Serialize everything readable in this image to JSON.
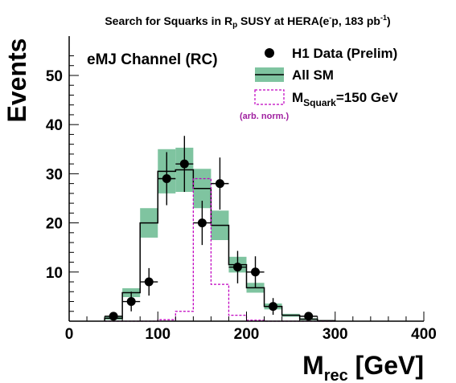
{
  "chart_data": {
    "type": "histogram",
    "title": "Search for Squarks in R_p SUSY at HERA(e⁻p, 183 pb⁻¹)",
    "title_parts": {
      "pre": "Search for Squarks in ",
      "rp_letter": "R",
      "rp_sub": "p",
      "mid": " SUSY at HERA(e",
      "e_sup": "-",
      "post1": "p, 183 pb",
      "pb_sup": "-1",
      "post2": ")"
    },
    "annotation": "eMJ Channel (RC)",
    "xlabel": "M_rec [GeV]",
    "xlabel_main": "M",
    "xlabel_sub": "rec",
    "xlabel_unit": " [GeV]",
    "ylabel": "Events",
    "xlim": [
      0,
      400
    ],
    "ylim": [
      0,
      58
    ],
    "x_ticks": [
      0,
      100,
      200,
      300,
      400
    ],
    "y_ticks": [
      10,
      20,
      30,
      40,
      50
    ],
    "grid": false,
    "legend_position": "top-right",
    "legend": {
      "data_label": "H1 Data (Prelim)",
      "sm_label": "All SM",
      "signal_main": "M",
      "signal_sub": "Squark",
      "signal_value": "=150 GeV",
      "signal_note": "(arb. norm.)"
    },
    "bin_edges": [
      40,
      60,
      80,
      100,
      120,
      140,
      160,
      180,
      200,
      220,
      240,
      260,
      280,
      300
    ],
    "sm_expectation": [
      0.6,
      5.8,
      20.0,
      30.5,
      30.8,
      27.0,
      19.5,
      11.5,
      6.8,
      3.0,
      1.2,
      0.4,
      0.1
    ],
    "sm_error": [
      0.3,
      0.9,
      3.0,
      4.5,
      4.5,
      4.0,
      3.0,
      1.6,
      1.0,
      0.6,
      0.3,
      0.2,
      0.1
    ],
    "signal": [
      0.0,
      0.0,
      0.0,
      0.3,
      2.0,
      29.0,
      7.5,
      1.2,
      0.2,
      0.0,
      0.0,
      0.0,
      0.0
    ],
    "data_points": [
      {
        "x": 50,
        "y": 1,
        "err": 0.8
      },
      {
        "x": 70,
        "y": 4,
        "err": 2.0
      },
      {
        "x": 90,
        "y": 8,
        "err": 2.8
      },
      {
        "x": 110,
        "y": 29,
        "err": 5.4
      },
      {
        "x": 130,
        "y": 32,
        "err": 5.7
      },
      {
        "x": 150,
        "y": 20,
        "err": 4.5
      },
      {
        "x": 170,
        "y": 28,
        "err": 5.3
      },
      {
        "x": 190,
        "y": 11,
        "err": 3.3
      },
      {
        "x": 210,
        "y": 10,
        "err": 3.2
      },
      {
        "x": 230,
        "y": 3,
        "err": 1.7
      },
      {
        "x": 270,
        "y": 1,
        "err": 0.8
      }
    ],
    "colors": {
      "sm_band": "#7fc4a0",
      "signal": "#c000c0",
      "signal_note": "#a020a0",
      "data": "#000000",
      "axis": "#000000"
    }
  }
}
